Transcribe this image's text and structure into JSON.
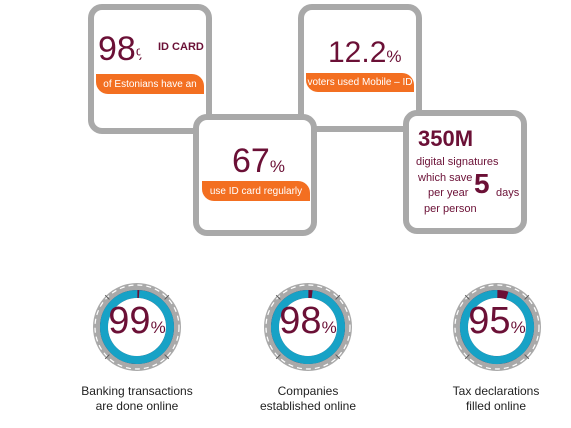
{
  "box_id_card": {
    "value": "98",
    "unit": "%",
    "label_top": "ID CARD",
    "label_bottom": "of Estonians have an"
  },
  "box_mobile_id": {
    "value": "12.2",
    "unit": "%",
    "label": "voters used Mobile – ID"
  },
  "box_regular": {
    "value": "67",
    "unit": "%",
    "label": "use ID card regularly"
  },
  "box_signatures": {
    "value": "350M",
    "line1": "digital signatures",
    "line2": "which save",
    "line3": "per year",
    "days_num": "5",
    "days_word": "days",
    "line4": "per person"
  },
  "rings": [
    {
      "value": "99",
      "unit": "%",
      "caption1": "Banking transactions",
      "caption2": "are done online",
      "fill": 0.99
    },
    {
      "value": "98",
      "unit": "%",
      "caption1": "Companies",
      "caption2": "established online",
      "fill": 0.98
    },
    {
      "value": "95",
      "unit": "%",
      "caption1": "Tax declarations",
      "caption2": "filled online",
      "fill": 0.95
    }
  ],
  "colors": {
    "maroon": "#6b1036",
    "orange": "#f36f21",
    "teal": "#17a2c6",
    "grey": "#a9a9a9"
  }
}
